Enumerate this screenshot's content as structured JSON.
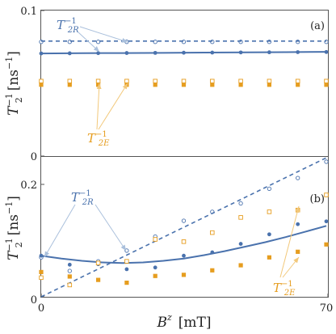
{
  "colors": {
    "blue": "#4a72ad",
    "orange": "#e69d1f",
    "blue_light": "#aac0dc",
    "orange_light": "#f2c87a"
  },
  "chart_data": [
    {
      "type": "scatter",
      "panel_label": "(a)",
      "xlabel": "",
      "ylabel": "T_2^{-1} [ns^{-1}]",
      "xlim": [
        0,
        70
      ],
      "ylim": [
        0,
        0.1
      ],
      "y_ticks": [
        "0",
        "0.1"
      ],
      "grid": false,
      "annotations": [
        {
          "text": "T",
          "sub": "2R",
          "sup": "−1",
          "color": "blue"
        },
        {
          "text": "T",
          "sub": "2E",
          "sup": "−1",
          "color": "orange"
        }
      ],
      "series": [
        {
          "marker": "open-circle",
          "color": "blue",
          "x": [
            0,
            7,
            14,
            21,
            28,
            35,
            42,
            49,
            56,
            63,
            70
          ],
          "y": [
            0.0785,
            0.0785,
            0.0785,
            0.0785,
            0.0785,
            0.0785,
            0.0785,
            0.0785,
            0.0785,
            0.0785,
            0.0785
          ]
        },
        {
          "marker": "dashed-line",
          "color": "blue",
          "x": [
            0,
            70
          ],
          "y": [
            0.079,
            0.079
          ]
        },
        {
          "marker": "filled-circle",
          "color": "blue",
          "x": [
            0,
            7,
            14,
            21,
            28,
            35,
            42,
            49,
            56,
            63,
            70
          ],
          "y": [
            0.0705,
            0.0706,
            0.0707,
            0.0708,
            0.0709,
            0.071,
            0.0711,
            0.0712,
            0.0713,
            0.0714,
            0.0715
          ]
        },
        {
          "marker": "solid-line",
          "color": "blue",
          "x": [
            0,
            10,
            20,
            30,
            40,
            50,
            60,
            70
          ],
          "y": [
            0.0705,
            0.0707,
            0.0708,
            0.0709,
            0.0711,
            0.0712,
            0.0714,
            0.0716
          ]
        },
        {
          "marker": "open-square",
          "color": "orange",
          "x": [
            0,
            7,
            14,
            21,
            28,
            35,
            42,
            49,
            56,
            63,
            70
          ],
          "y": [
            0.0515,
            0.0515,
            0.0515,
            0.0515,
            0.0515,
            0.0515,
            0.0515,
            0.0515,
            0.0515,
            0.0515,
            0.0515
          ]
        },
        {
          "marker": "filled-square",
          "color": "orange",
          "x": [
            0,
            7,
            14,
            21,
            28,
            35,
            42,
            49,
            56,
            63,
            70
          ],
          "y": [
            0.049,
            0.049,
            0.049,
            0.049,
            0.049,
            0.049,
            0.049,
            0.049,
            0.049,
            0.049,
            0.049
          ]
        }
      ]
    },
    {
      "type": "scatter",
      "panel_label": "(b)",
      "xlabel": "B^z [mT]",
      "ylabel": "T_2^{-1} [ns^{-1}]",
      "xlim": [
        0,
        70
      ],
      "ylim": [
        0,
        0.25
      ],
      "y_ticks": [
        "0",
        "0.2"
      ],
      "x_ticks": [
        "0",
        "70"
      ],
      "grid": false,
      "annotations": [
        {
          "text": "T",
          "sub": "2R",
          "sup": "−1",
          "color": "blue"
        },
        {
          "text": "T",
          "sub": "2E",
          "sup": "−1",
          "color": "orange"
        }
      ],
      "series": [
        {
          "marker": "open-circle",
          "color": "blue",
          "x": [
            0,
            7,
            14,
            21,
            28,
            35,
            42,
            49,
            56,
            63,
            70
          ],
          "y": [
            0.07,
            0.046,
            0.063,
            0.082,
            0.107,
            0.135,
            0.151,
            0.166,
            0.192,
            0.211,
            0.24
          ]
        },
        {
          "marker": "dashed-line",
          "color": "blue",
          "x": [
            0,
            70
          ],
          "y": [
            0,
            0.247
          ]
        },
        {
          "marker": "filled-circle",
          "color": "blue",
          "x": [
            0,
            7,
            14,
            21,
            28,
            35,
            42,
            49,
            56,
            63,
            70
          ],
          "y": [
            0.073,
            0.057,
            0.058,
            0.049,
            0.052,
            0.073,
            0.079,
            0.094,
            0.111,
            0.129,
            0.134
          ]
        },
        {
          "marker": "solid-line",
          "color": "blue",
          "x": [
            0,
            5,
            10,
            15,
            20,
            25,
            30,
            35,
            40,
            45,
            50,
            55,
            60,
            65,
            70
          ],
          "y": [
            0.073,
            0.068,
            0.064,
            0.061,
            0.06,
            0.061,
            0.064,
            0.068,
            0.074,
            0.081,
            0.089,
            0.097,
            0.106,
            0.116,
            0.126
          ]
        },
        {
          "marker": "open-square",
          "color": "orange",
          "x": [
            0,
            7,
            14,
            21,
            28,
            35,
            42,
            49,
            56,
            63,
            70
          ],
          "y": [
            0.034,
            0.021,
            0.06,
            0.063,
            0.102,
            0.098,
            0.114,
            0.141,
            0.151,
            0.154,
            0.181
          ]
        },
        {
          "marker": "filled-square",
          "color": "orange",
          "x": [
            0,
            7,
            14,
            21,
            28,
            35,
            42,
            49,
            56,
            63,
            70
          ],
          "y": [
            0.044,
            0.036,
            0.03,
            0.025,
            0.037,
            0.039,
            0.047,
            0.056,
            0.07,
            0.08,
            0.093
          ]
        }
      ]
    }
  ],
  "labels": {
    "ylabel_top_T": "T",
    "ylabel_top_sub": "2",
    "ylabel_top_sup": "−1",
    "ylabel_top_unit": "[ns",
    "ylabel_top_unit_sup": "−1",
    "ylabel_top_close": "]",
    "ylabel_bot_T": "T",
    "ylabel_bot_sub": "2",
    "ylabel_bot_sup": "−1",
    "ylabel_bot_unit": "[ns",
    "ylabel_bot_unit_sup": "−1",
    "ylabel_bot_close": "]",
    "xlabel_B": "B",
    "xlabel_sup": "z",
    "xlabel_unit": "[mT]"
  }
}
